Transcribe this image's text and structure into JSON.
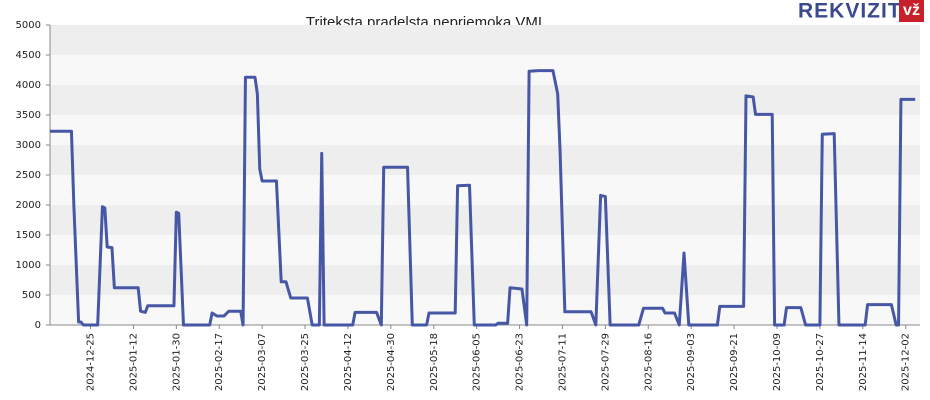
{
  "chart_data": {
    "type": "line",
    "title": "Triteksta pradelsta nepriemoka VMI",
    "x": [
      "2024-12-08",
      "2024-12-17",
      "2024-12-18",
      "2024-12-20",
      "2024-12-21",
      "2024-12-22",
      "2024-12-28",
      "2024-12-30",
      "2024-12-31",
      "2025-01-01",
      "2025-01-03",
      "2025-01-04",
      "2025-01-14",
      "2025-01-15",
      "2025-01-17",
      "2025-01-18",
      "2025-01-29",
      "2025-01-30",
      "2025-01-31",
      "2025-02-02",
      "2025-02-13",
      "2025-02-14",
      "2025-02-16",
      "2025-02-19",
      "2025-02-21",
      "2025-02-26",
      "2025-02-27",
      "2025-02-28",
      "2025-03-04",
      "2025-03-05",
      "2025-03-06",
      "2025-03-07",
      "2025-03-13",
      "2025-03-15",
      "2025-03-17",
      "2025-03-19",
      "2025-03-26",
      "2025-03-28",
      "2025-03-31",
      "2025-04-01",
      "2025-04-02",
      "2025-04-14",
      "2025-04-15",
      "2025-04-24",
      "2025-04-26",
      "2025-04-27",
      "2025-05-07",
      "2025-05-09",
      "2025-05-15",
      "2025-05-16",
      "2025-05-27",
      "2025-05-28",
      "2025-06-02",
      "2025-06-04",
      "2025-06-13",
      "2025-06-14",
      "2025-06-18",
      "2025-06-19",
      "2025-06-24",
      "2025-06-26",
      "2025-06-27",
      "2025-07-01",
      "2025-07-07",
      "2025-07-09",
      "2025-07-10",
      "2025-07-12",
      "2025-07-23",
      "2025-07-25",
      "2025-07-27",
      "2025-07-29",
      "2025-07-31",
      "2025-08-12",
      "2025-08-14",
      "2025-08-22",
      "2025-08-23",
      "2025-08-27",
      "2025-08-29",
      "2025-08-31",
      "2025-09-02",
      "2025-09-14",
      "2025-09-15",
      "2025-09-25",
      "2025-09-26",
      "2025-09-29",
      "2025-09-30",
      "2025-10-07",
      "2025-10-08",
      "2025-10-12",
      "2025-10-13",
      "2025-10-19",
      "2025-10-21",
      "2025-10-27",
      "2025-10-28",
      "2025-11-02",
      "2025-11-04",
      "2025-11-15",
      "2025-11-16",
      "2025-11-26",
      "2025-11-28",
      "2025-11-29",
      "2025-11-30",
      "2025-12-06"
    ],
    "series": [
      {
        "color": "#4657a6",
        "values": [
          3230,
          3230,
          2000,
          50,
          50,
          0,
          0,
          1970,
          1950,
          1300,
          1290,
          620,
          620,
          230,
          210,
          320,
          320,
          1880,
          1860,
          0,
          0,
          200,
          150,
          150,
          230,
          230,
          0,
          4130,
          4130,
          3850,
          2600,
          2400,
          2400,
          720,
          720,
          450,
          450,
          0,
          0,
          2860,
          0,
          0,
          210,
          210,
          0,
          2630,
          2630,
          0,
          0,
          200,
          200,
          2320,
          2330,
          0,
          0,
          30,
          30,
          620,
          600,
          0,
          4230,
          4240,
          4240,
          3850,
          2900,
          220,
          220,
          0,
          2160,
          2140,
          0,
          0,
          280,
          280,
          200,
          200,
          0,
          1200,
          0,
          0,
          310,
          310,
          3820,
          3800,
          3510,
          3510,
          0,
          0,
          290,
          290,
          0,
          0,
          3180,
          3190,
          0,
          0,
          340,
          340,
          0,
          0,
          3760,
          3760
        ]
      }
    ],
    "xlim": [
      "2024-12-08",
      "2025-12-08"
    ],
    "xticks": [
      "2024-12-25",
      "2025-01-12",
      "2025-01-30",
      "2025-02-17",
      "2025-03-07",
      "2025-03-25",
      "2025-04-12",
      "2025-04-30",
      "2025-05-18",
      "2025-06-05",
      "2025-06-23",
      "2025-07-11",
      "2025-07-29",
      "2025-08-16",
      "2025-09-03",
      "2025-09-21",
      "2025-10-09",
      "2025-10-27",
      "2025-11-14",
      "2025-12-02"
    ],
    "ylim": [
      0,
      5000
    ],
    "yticks": [
      0,
      500,
      1000,
      1500,
      2000,
      2500,
      3000,
      3500,
      4000,
      4500,
      5000
    ],
    "grid": true
  },
  "logo": {
    "text": "REKVIZITAI",
    "badge": "vž"
  }
}
